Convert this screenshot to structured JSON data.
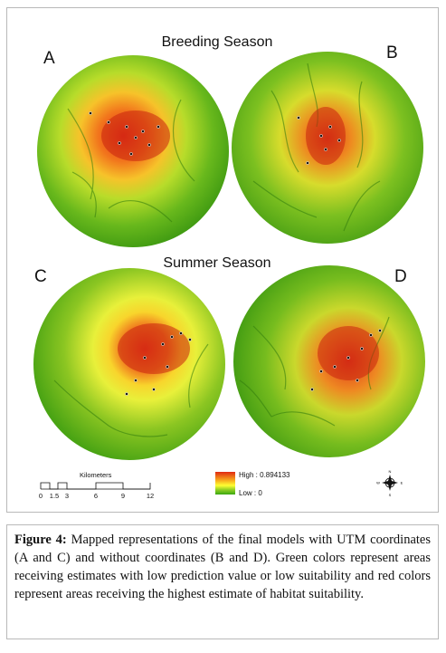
{
  "figure": {
    "row1_title": "Breeding Season",
    "row2_title": "Summer Season",
    "panels": [
      {
        "letter": "A"
      },
      {
        "letter": "B"
      },
      {
        "letter": "C"
      },
      {
        "letter": "D"
      }
    ],
    "scale_bar": {
      "title": "Kilometers",
      "ticks": [
        "0",
        "1.5",
        "3",
        "6",
        "9",
        "12"
      ]
    },
    "legend": {
      "high_label": "High : 0.894133",
      "low_label": "Low : 0",
      "colors": {
        "high": "#e02a12",
        "mid": "#ffff33",
        "low": "#3aa611"
      }
    },
    "compass": {
      "n": "N",
      "s": "S",
      "e": "E",
      "w": "W"
    }
  },
  "caption": {
    "label": "Figure 4:",
    "text": "Mapped representations of the final models with UTM coordinates (A and C) and without coordinates (B and D). Green colors represent areas receiving estimates with low prediction value or low suitability and red colors represent areas receiving the highest estimate of habitat suitability."
  }
}
